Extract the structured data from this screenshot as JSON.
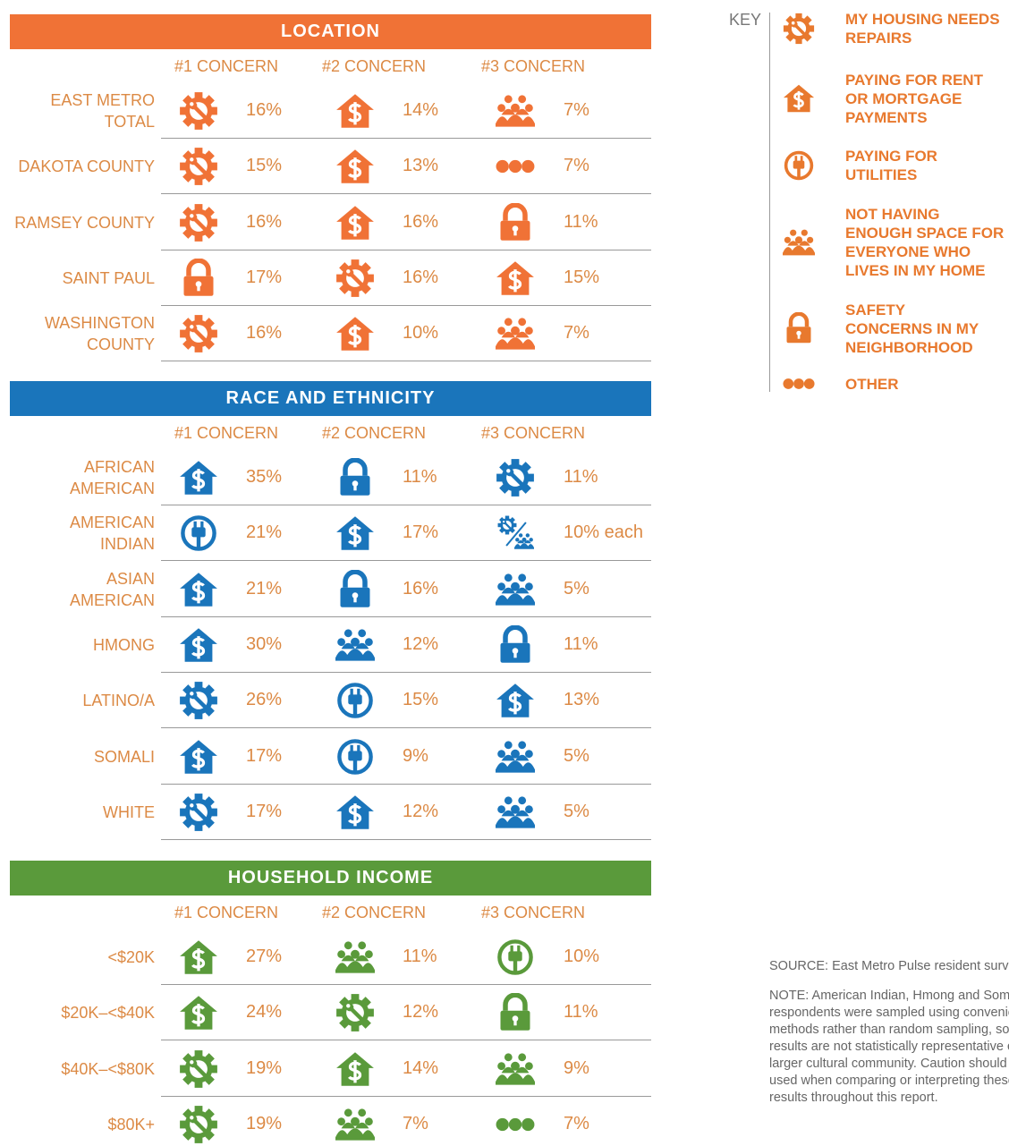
{
  "sections": [
    {
      "title": "LOCATION",
      "color": "#f07236",
      "columns": [
        "#1 CONCERN",
        "#2 CONCERN",
        "#3 CONCERN"
      ],
      "rows": [
        {
          "label": [
            "EAST METRO",
            "TOTAL"
          ],
          "cells": [
            {
              "icon": 0,
              "text": "16%"
            },
            {
              "icon": 1,
              "text": "14%"
            },
            {
              "icon": 3,
              "text": "7%"
            }
          ]
        },
        {
          "label": [
            "DAKOTA COUNTY"
          ],
          "cells": [
            {
              "icon": 0,
              "text": "15%"
            },
            {
              "icon": 1,
              "text": "13%"
            },
            {
              "icon": 5,
              "text": "7%"
            }
          ]
        },
        {
          "label": [
            "RAMSEY COUNTY"
          ],
          "cells": [
            {
              "icon": 0,
              "text": "16%"
            },
            {
              "icon": 1,
              "text": "16%"
            },
            {
              "icon": 4,
              "text": "11%"
            }
          ]
        },
        {
          "label": [
            "SAINT PAUL"
          ],
          "cells": [
            {
              "icon": 4,
              "text": "17%"
            },
            {
              "icon": 0,
              "text": "16%"
            },
            {
              "icon": 1,
              "text": "15%"
            }
          ]
        },
        {
          "label": [
            "WASHINGTON",
            "COUNTY"
          ],
          "cells": [
            {
              "icon": 0,
              "text": "16%"
            },
            {
              "icon": 1,
              "text": "10%"
            },
            {
              "icon": 3,
              "text": "7%"
            }
          ]
        }
      ]
    },
    {
      "title": "RACE AND ETHNICITY",
      "color": "#1a75bb",
      "columns": [
        "#1 CONCERN",
        "#2 CONCERN",
        "#3 CONCERN"
      ],
      "rows": [
        {
          "label": [
            "AFRICAN",
            "AMERICAN"
          ],
          "cells": [
            {
              "icon": 1,
              "text": "35%"
            },
            {
              "icon": 4,
              "text": "11%"
            },
            {
              "icon": 0,
              "text": "11%"
            }
          ]
        },
        {
          "label": [
            "AMERICAN",
            "INDIAN"
          ],
          "cells": [
            {
              "icon": 2,
              "text": "21%"
            },
            {
              "icon": 1,
              "text": "17%"
            },
            {
              "icon": [
                0,
                3
              ],
              "text": "10% each"
            }
          ]
        },
        {
          "label": [
            "ASIAN",
            "AMERICAN"
          ],
          "cells": [
            {
              "icon": 1,
              "text": "21%"
            },
            {
              "icon": 4,
              "text": "16%"
            },
            {
              "icon": 3,
              "text": "5%"
            }
          ]
        },
        {
          "label": [
            "HMONG"
          ],
          "cells": [
            {
              "icon": 1,
              "text": "30%"
            },
            {
              "icon": 3,
              "text": "12%"
            },
            {
              "icon": 4,
              "text": "11%"
            }
          ]
        },
        {
          "label": [
            "LATINO/A"
          ],
          "cells": [
            {
              "icon": 0,
              "text": "26%"
            },
            {
              "icon": 2,
              "text": "15%"
            },
            {
              "icon": 1,
              "text": "13%"
            }
          ]
        },
        {
          "label": [
            "SOMALI"
          ],
          "cells": [
            {
              "icon": 1,
              "text": "17%"
            },
            {
              "icon": 2,
              "text": "9%"
            },
            {
              "icon": 3,
              "text": "5%"
            }
          ]
        },
        {
          "label": [
            "WHITE"
          ],
          "cells": [
            {
              "icon": 0,
              "text": "17%"
            },
            {
              "icon": 1,
              "text": "12%"
            },
            {
              "icon": 3,
              "text": "5%"
            }
          ]
        }
      ]
    },
    {
      "title": "HOUSEHOLD INCOME",
      "color": "#5a9a3b",
      "columns": [
        "#1 CONCERN",
        "#2 CONCERN",
        "#3 CONCERN"
      ],
      "rows": [
        {
          "label": [
            "<$20K"
          ],
          "cells": [
            {
              "icon": 1,
              "text": "27%"
            },
            {
              "icon": 3,
              "text": "11%"
            },
            {
              "icon": 2,
              "text": "10%"
            }
          ]
        },
        {
          "label": [
            "$20K–<$40K"
          ],
          "cells": [
            {
              "icon": 1,
              "text": "24%"
            },
            {
              "icon": 0,
              "text": "12%"
            },
            {
              "icon": 4,
              "text": "11%"
            }
          ]
        },
        {
          "label": [
            "$40K–<$80K"
          ],
          "cells": [
            {
              "icon": 0,
              "text": "19%"
            },
            {
              "icon": 1,
              "text": "14%"
            },
            {
              "icon": 3,
              "text": "9%"
            }
          ]
        },
        {
          "label": [
            "$80K+"
          ],
          "cells": [
            {
              "icon": 0,
              "text": "19%"
            },
            {
              "icon": 3,
              "text": "7%"
            },
            {
              "icon": 5,
              "text": "7%"
            }
          ]
        }
      ]
    }
  ],
  "key": {
    "title": "KEY",
    "color": "#e8792e",
    "items": [
      [
        "MY HOUSING NEEDS",
        "REPAIRS"
      ],
      [
        "PAYING FOR RENT",
        "OR MORTGAGE",
        "PAYMENTS"
      ],
      [
        "PAYING FOR",
        "UTILITIES"
      ],
      [
        "NOT HAVING",
        "ENOUGH SPACE FOR",
        "EVERYONE WHO",
        "LIVES IN MY HOME"
      ],
      [
        "SAFETY",
        "CONCERNS IN MY",
        "NEIGHBORHOOD"
      ],
      [
        "OTHER"
      ]
    ]
  },
  "source": "SOURCE: East Metro Pulse resident survey",
  "note": "NOTE: American Indian, Hmong and Somali respondents were sampled using convenience methods rather than random sampling, so these results are not statistically representative of the larger cultural community. Caution should be used when comparing or interpreting these results throughout this report."
}
